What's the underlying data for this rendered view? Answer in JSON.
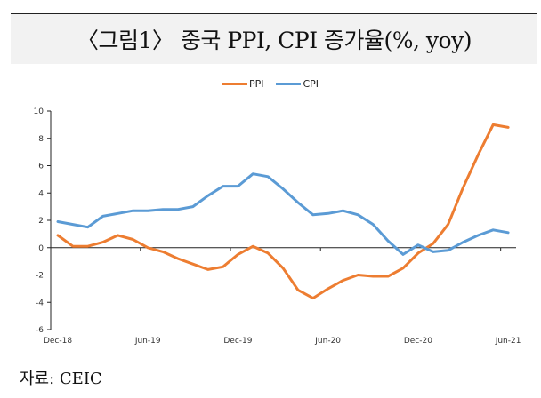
{
  "title": "〈그림1〉 중국 PPI, CPI 증가율(%, yoy)",
  "source": "자료: CEIC",
  "chart_data": {
    "type": "line",
    "title": "〈그림1〉 중국 PPI, CPI 증가율(%, yoy)",
    "xlabel": "",
    "ylabel": "",
    "ylim": [
      -6,
      10
    ],
    "yticks": [
      10,
      8,
      6,
      4,
      2,
      0,
      -2,
      -4,
      -6
    ],
    "x_tick_labels": [
      "Dec-18",
      "Jun-19",
      "Dec-19",
      "Jun-20",
      "Dec-20",
      "Jun-21"
    ],
    "x": [
      "Dec-18",
      "Jan-19",
      "Feb-19",
      "Mar-19",
      "Apr-19",
      "May-19",
      "Jun-19",
      "Jul-19",
      "Aug-19",
      "Sep-19",
      "Oct-19",
      "Nov-19",
      "Dec-19",
      "Jan-20",
      "Feb-20",
      "Mar-20",
      "Apr-20",
      "May-20",
      "Jun-20",
      "Jul-20",
      "Aug-20",
      "Sep-20",
      "Oct-20",
      "Nov-20",
      "Dec-20",
      "Jan-21",
      "Feb-21",
      "Mar-21",
      "Apr-21",
      "May-21",
      "Jun-21"
    ],
    "legend_position": "top-center",
    "grid": false,
    "series": [
      {
        "name": "PPI",
        "color": "#ed7d31",
        "values": [
          0.9,
          0.1,
          0.1,
          0.4,
          0.9,
          0.6,
          0.0,
          -0.3,
          -0.8,
          -1.2,
          -1.6,
          -1.4,
          -0.5,
          0.1,
          -0.4,
          -1.5,
          -3.1,
          -3.7,
          -3.0,
          -2.4,
          -2.0,
          -2.1,
          -2.1,
          -1.5,
          -0.4,
          0.3,
          1.7,
          4.4,
          6.8,
          9.0,
          8.8
        ]
      },
      {
        "name": "CPI",
        "color": "#5b9bd5",
        "values": [
          1.9,
          1.7,
          1.5,
          2.3,
          2.5,
          2.7,
          2.7,
          2.8,
          2.8,
          3.0,
          3.8,
          4.5,
          4.5,
          5.4,
          5.2,
          4.3,
          3.3,
          2.4,
          2.5,
          2.7,
          2.4,
          1.7,
          0.5,
          -0.5,
          0.2,
          -0.3,
          -0.2,
          0.4,
          0.9,
          1.3,
          1.1
        ]
      }
    ]
  }
}
